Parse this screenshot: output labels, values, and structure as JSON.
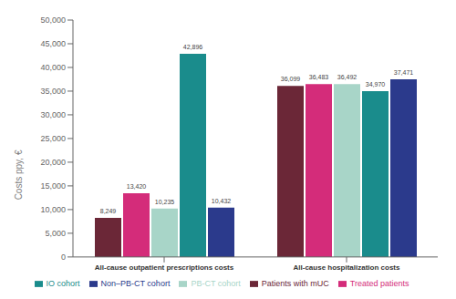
{
  "chart_data": {
    "type": "bar",
    "categories": [
      "All-cause outpatient prescriptions costs",
      "All-cause hospitalization costs"
    ],
    "series": [
      {
        "name": "Patients with mUC",
        "color": "#6B2737",
        "values": [
          8249,
          36099
        ],
        "value_labels": [
          "8,249",
          "36,099"
        ]
      },
      {
        "name": "Treated patients",
        "color": "#D42C7A",
        "values": [
          13420,
          36483
        ],
        "value_labels": [
          "13,420",
          "36,483"
        ]
      },
      {
        "name": "PB-CT cohort",
        "color": "#A8D5C8",
        "values": [
          10235,
          36492
        ],
        "value_labels": [
          "10,235",
          "36,492"
        ]
      },
      {
        "name": "IO cohort",
        "color": "#1A8C8C",
        "values": [
          42896,
          34970
        ],
        "value_labels": [
          "42,896",
          "34,970"
        ]
      },
      {
        "name": "Non–PB-CT cohort",
        "color": "#2B3A8C",
        "values": [
          10432,
          37471
        ],
        "value_labels": [
          "10,432",
          "37,471"
        ]
      }
    ],
    "ylabel": "Costs ppy, €",
    "ylim": [
      0,
      50000
    ],
    "yticks": [
      0,
      {
        "value": 5000,
        "label": "5,000"
      },
      {
        "value": 10000,
        "label": "10,000"
      },
      {
        "value": 15000,
        "label": "15,000"
      },
      {
        "value": 20000,
        "label": "20,000"
      },
      {
        "value": 25000,
        "label": "25,000"
      },
      {
        "value": 30000,
        "label": "30,000"
      },
      {
        "value": 35000,
        "label": "35,000"
      },
      {
        "value": 40000,
        "label": "40,000"
      },
      {
        "value": 45000,
        "label": "45,000"
      },
      {
        "value": 50000,
        "label": "50,000"
      }
    ],
    "grid": false,
    "legend": "bottom",
    "data_labels": true
  }
}
